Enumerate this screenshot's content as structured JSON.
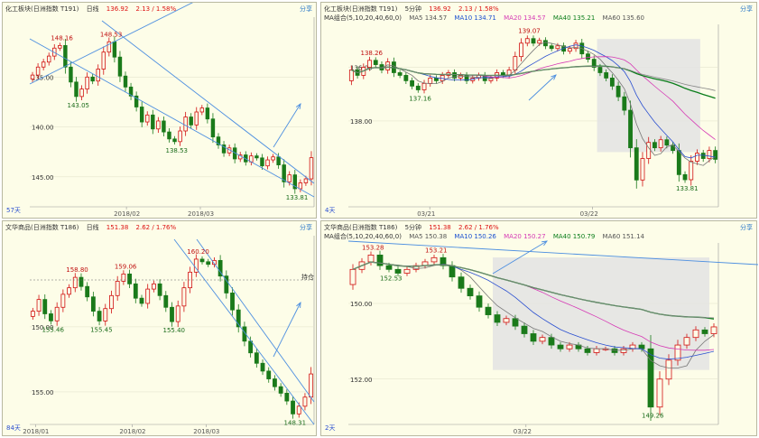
{
  "panels": [
    {
      "id": "tl",
      "header": {
        "name": "化工板块(日洲指数 T191)",
        "period": "日线",
        "price": "136.92",
        "change": "2.13 / 1.58%"
      },
      "corner": "分享",
      "days": "57天",
      "ylabels": [
        "145.00",
        "140.00",
        "135.00"
      ],
      "xlabels": [
        "2018/02",
        "2018/03"
      ],
      "annotations": [
        "148.16",
        "148.53",
        "143.05",
        "138.53",
        "133.81"
      ]
    },
    {
      "id": "tr",
      "header": {
        "name": "化工板块(日洲指数 T191)",
        "period": "5分钟",
        "price": "136.92",
        "change": "2.13 / 1.58%"
      },
      "ma": {
        "label": "MA组合(5,10,20,40,60,0)",
        "ma5": "MA5 134.57",
        "ma10": "MA10 134.71",
        "ma20": "MA20 134.57",
        "ma40": "MA40 135.21",
        "ma60": "MA60 135.60"
      },
      "corner": "分享",
      "days": "4天",
      "ylabels": [
        "138.00",
        "136.00"
      ],
      "xlabels": [
        "03/21",
        "03/22"
      ],
      "annotations": [
        "138.26",
        "139.07",
        "137.16",
        "133.81"
      ]
    },
    {
      "id": "bl",
      "header": {
        "name": "文华商品(日洲指数 T186)",
        "period": "日线",
        "price": "151.38",
        "change": "2.62 / 1.76%"
      },
      "corner": "分享",
      "days": "84天",
      "hline_label": "持仓",
      "ylabels": [
        "155.00",
        "150.00"
      ],
      "xlabels": [
        "2018/01",
        "2018/02",
        "2018/03"
      ],
      "annotations": [
        "158.80",
        "159.06",
        "160.20",
        "155.46",
        "155.45",
        "155.40",
        "148.31"
      ]
    },
    {
      "id": "br",
      "header": {
        "name": "文华商品(日洲指数 T186)",
        "period": "5分钟",
        "price": "151.38",
        "change": "2.62 / 1.76%"
      },
      "ma": {
        "label": "MA组合(5,10,20,40,60,0)",
        "ma5": "MA5 150.38",
        "ma10": "MA10 150.26",
        "ma20": "MA20 150.27",
        "ma40": "MA40 150.79",
        "ma60": "MA60 151.14"
      },
      "corner": "分享",
      "days": "2天",
      "ylabels": [
        "152.00",
        "150.00"
      ],
      "xlabels": [
        "03/22"
      ],
      "annotations": [
        "153.28",
        "153.21",
        "152.53",
        "149.26"
      ]
    }
  ],
  "chart_data": [
    {
      "type": "candlestick",
      "title": "化工板块 日线",
      "ylim": [
        132,
        151
      ],
      "yticks": [
        135,
        140,
        145
      ],
      "closes": [
        145.2,
        146.0,
        146.5,
        147.1,
        147.9,
        148.16,
        146.0,
        144.5,
        143.05,
        143.8,
        145.0,
        144.6,
        145.8,
        147.5,
        148.53,
        147.0,
        145.1,
        144.0,
        143.1,
        142.0,
        140.5,
        141.2,
        139.8,
        140.6,
        139.5,
        138.8,
        138.53,
        139.6,
        141.0,
        140.2,
        141.5,
        141.9,
        140.8,
        139.0,
        138.2,
        137.4,
        137.9,
        136.8,
        137.2,
        136.5,
        137.1,
        136.9,
        136.1,
        136.7,
        137.0,
        136.2,
        134.5,
        135.2,
        133.81,
        134.4,
        134.8,
        136.92
      ],
      "lows": [
        {
          "label": "143.05"
        },
        {
          "label": "138.53"
        },
        {
          "label": "133.81"
        }
      ],
      "highs": [
        {
          "label": "148.16"
        },
        {
          "label": "148.53"
        }
      ],
      "colors": {
        "up": "#d11111",
        "down": "#1a7a1a"
      }
    },
    {
      "type": "candlestick",
      "title": "化工板块 5分钟",
      "ylim": [
        132.8,
        139.6
      ],
      "yticks": [
        136,
        138
      ],
      "closes": [
        137.9,
        137.7,
        138.0,
        138.26,
        138.1,
        137.9,
        138.2,
        137.8,
        137.7,
        137.5,
        137.3,
        137.16,
        137.4,
        137.6,
        137.5,
        137.7,
        137.8,
        137.6,
        137.7,
        137.5,
        137.6,
        137.7,
        137.5,
        137.6,
        137.8,
        137.7,
        137.9,
        138.4,
        138.9,
        139.07,
        138.9,
        139.0,
        138.8,
        138.7,
        138.8,
        138.6,
        138.7,
        138.9,
        138.5,
        138.3,
        138.0,
        137.8,
        137.6,
        137.3,
        136.9,
        136.4,
        135.0,
        133.8,
        134.6,
        135.2,
        135.0,
        135.3,
        135.1,
        134.9,
        134.0,
        133.81,
        134.5,
        134.8,
        134.6,
        134.9,
        134.57
      ]
    },
    {
      "type": "candlestick",
      "title": "文华商品 日线",
      "ylim": [
        147.5,
        162
      ],
      "yticks": [
        150,
        155
      ],
      "closes": [
        156.2,
        157.1,
        156.0,
        155.46,
        156.5,
        157.5,
        158.0,
        158.8,
        158.1,
        157.3,
        156.2,
        155.45,
        156.4,
        157.4,
        158.5,
        159.06,
        158.3,
        157.2,
        156.8,
        157.9,
        158.3,
        157.4,
        156.5,
        155.4,
        156.6,
        158.0,
        159.2,
        160.2,
        160.0,
        159.8,
        160.1,
        158.9,
        157.6,
        156.3,
        155.0,
        153.9,
        153.0,
        152.2,
        151.6,
        151.0,
        150.4,
        149.9,
        149.3,
        148.31,
        148.9,
        149.6,
        151.38
      ]
    },
    {
      "type": "candlestick",
      "title": "文华商品 5分钟",
      "ylim": [
        148.8,
        153.6
      ],
      "yticks": [
        150,
        152
      ],
      "closes": [
        152.9,
        153.1,
        153.28,
        153.0,
        152.9,
        152.8,
        152.9,
        153.0,
        153.1,
        153.21,
        153.0,
        152.7,
        152.4,
        152.2,
        151.9,
        151.7,
        151.5,
        151.6,
        151.4,
        151.2,
        151.0,
        151.1,
        150.9,
        150.8,
        150.9,
        150.8,
        150.7,
        150.8,
        150.8,
        150.7,
        150.8,
        150.9,
        150.8,
        149.26,
        150.0,
        150.5,
        150.9,
        151.1,
        151.3,
        151.2,
        151.38
      ]
    }
  ]
}
